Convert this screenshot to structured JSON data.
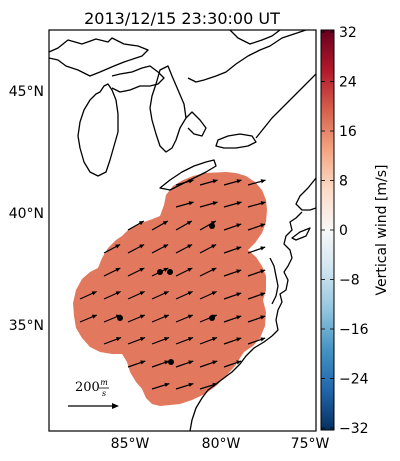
{
  "map": {
    "title": "2013/12/15 23:30:00 UT",
    "lat_ticks": [
      "45°N",
      "40°N",
      "35°N"
    ],
    "lon_ticks": [
      "85°W",
      "80°W",
      "75°W"
    ],
    "region": "Great Lakes and eastern United States",
    "wind_field_color": "#e2795f",
    "station_color": "#000000",
    "vector_color": "#000000",
    "scale_key": {
      "value": "200",
      "unit_top": "m",
      "unit_bottom": "s"
    }
  },
  "colorbar": {
    "label": "Vertical wind [m/s]",
    "ticks": [
      "32",
      "24",
      "16",
      "8",
      "0",
      "−8",
      "−16",
      "−24",
      "−32"
    ],
    "range": [
      -32,
      32
    ],
    "colormap": "RdBu_r",
    "stops": [
      "#053061",
      "#2166ac",
      "#4393c3",
      "#92c5de",
      "#d1e5f0",
      "#f7f7f7",
      "#fddbc7",
      "#f4a582",
      "#d6604d",
      "#b2182b",
      "#67001f"
    ]
  }
}
